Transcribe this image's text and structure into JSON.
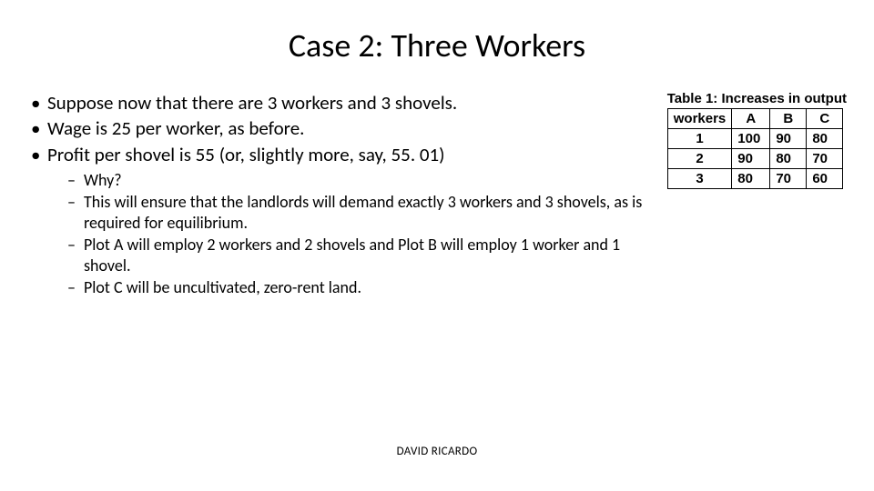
{
  "title": "Case 2: Three Workers",
  "bullets": [
    "Suppose now that there are 3 workers and 3 shovels.",
    "Wage is 25 per worker, as before.",
    "Profit per shovel is 55 (or, slightly more, say, 55. 01)"
  ],
  "sub_bullets": [
    "Why?",
    "This will ensure that the landlords will demand exactly 3 workers and 3 shovels, as is required for equilibrium.",
    "Plot A will employ 2 workers and 2 shovels and Plot B will employ 1 worker and 1 shovel.",
    "Plot C will be uncultivated, zero-rent land."
  ],
  "table": {
    "caption": "Table 1: Increases in output",
    "columns": [
      "workers",
      "A",
      "B",
      "C"
    ],
    "rows": [
      [
        "1",
        "100",
        "90",
        "80"
      ],
      [
        "2",
        "90",
        "80",
        "70"
      ],
      [
        "3",
        "80",
        "70",
        "60"
      ]
    ],
    "border_color": "#000000",
    "header_fontweight": "700",
    "cell_fontweight": "700",
    "font_family": "Arial",
    "font_size_pt": 11
  },
  "footer": "DAVID RICARDO",
  "colors": {
    "background": "#ffffff",
    "text": "#000000"
  },
  "typography": {
    "title_fontsize_pt": 27,
    "bullet_fontsize_pt": 16,
    "sub_bullet_fontsize_pt": 13.5,
    "footer_fontsize_pt": 10
  }
}
